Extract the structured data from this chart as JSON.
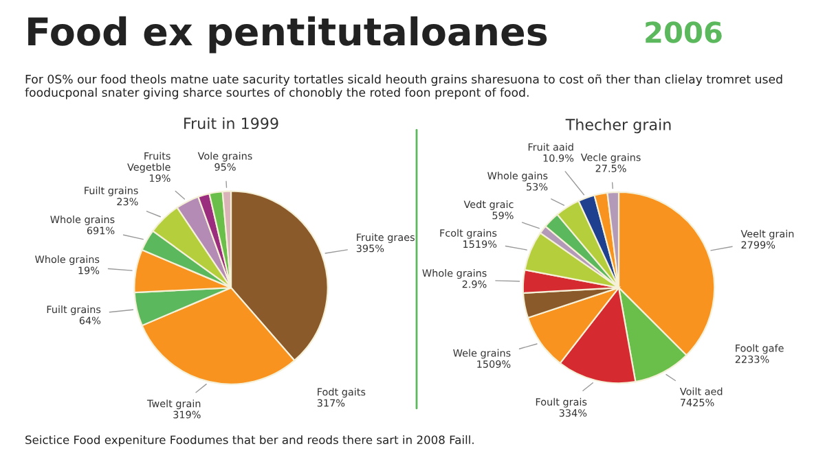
{
  "chart_data": [
    {
      "type": "pie",
      "title": "Fruit in 1999",
      "annotations": [
        "Food ex pentitutaloanes",
        "2006",
        "For 0S% our food theols matne uate sacurity tortatles sicald heouth grains sharesuona to cost oñ ther than clielay tromret used fooducponal snater giving sharce sourtes of chonobly the roted foon prepont of food.",
        "Fodt gaits\n317%",
        "Seictice Food expeniture Foodumes that ber and reods there sart in 2008 Faill."
      ],
      "categories": [
        "Fruite graes\n395%",
        "Twelt grain\n319%",
        "Fuilt grains\n64%",
        "Whole grains\n19%",
        "Whole grains\n691%",
        "Fuilt grains\n23%",
        "Fruits\nVegetble\n19%",
        null,
        null,
        "Vole grains\n95%"
      ],
      "values": [
        38.6,
        30.0,
        5.6,
        7.2,
        3.6,
        5.6,
        3.9,
        1.9,
        2.2,
        1.4
      ],
      "colors": [
        "#8b5a2b",
        "#f7931e",
        "#5cb85c",
        "#f7931e",
        "#5cb85c",
        "#b5cf3c",
        "#b48bb5",
        "#9b2d7f",
        "#6abf4b",
        "#d9b3b8"
      ]
    },
    {
      "type": "pie",
      "title": "Thecher grain",
      "annotations": [
        "Foolt gafe\n2233%"
      ],
      "categories": [
        "Veelt grain\n2799%",
        "Voilt aed\n7425%",
        "Foult grais\n334%",
        "Wele grains\n1509%",
        null,
        "Whole grains\n2.9%",
        "Fcolt grains\n1519%",
        "Vedt graic\n59%",
        null,
        "Whole gains\n53%",
        "Fruit aaid\n10.9%",
        null,
        "Vecle grains\n27.5%"
      ],
      "values": [
        37.5,
        9.7,
        13.3,
        9.4,
        4.2,
        3.9,
        6.7,
        1.4,
        2.8,
        4.2,
        2.8,
        2.2,
        1.9
      ],
      "colors": [
        "#f7931e",
        "#6abf4b",
        "#d42a30",
        "#f7931e",
        "#8b5a2b",
        "#d42a30",
        "#b5cf3c",
        "#b39ab8",
        "#5cb85c",
        "#b5cf3c",
        "#1f3f8f",
        "#f7931e",
        "#b39ab8"
      ]
    }
  ]
}
